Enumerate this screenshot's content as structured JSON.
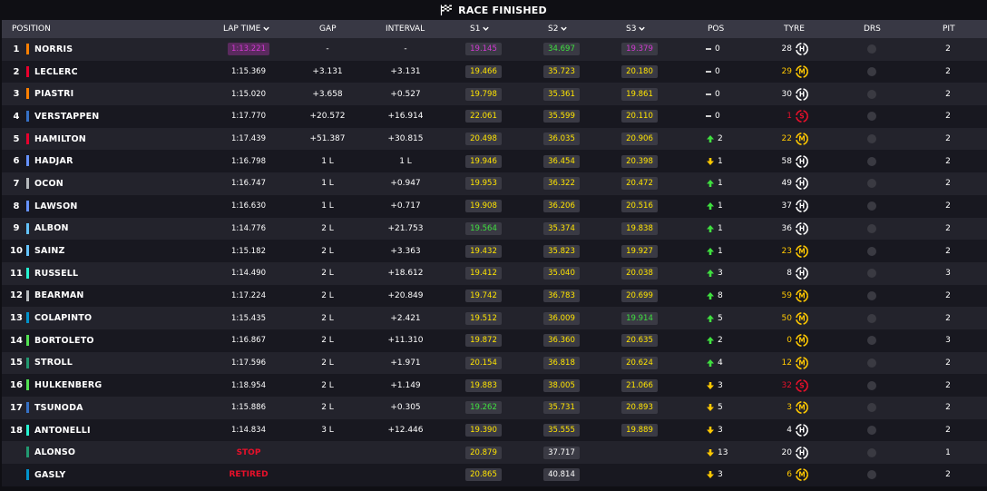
{
  "banner": {
    "title": "RACE FINISHED",
    "icon": "checkered-flag-icon"
  },
  "headers": {
    "position": "POSITION",
    "lap_time": "LAP TIME",
    "gap": "GAP",
    "interval": "INTERVAL",
    "s1": "S1",
    "s2": "S2",
    "s3": "S3",
    "pos": "POS",
    "tyre": "TYRE",
    "drs": "DRS",
    "pit": "PIT"
  },
  "colors": {
    "yellow_sector": "#ffe400",
    "green_sector": "#3fe03f",
    "purple_sector": "#d23ad2",
    "soft": "#e8102a",
    "medium": "#ffc800",
    "hard": "#ffffff"
  },
  "drivers": [
    {
      "pos": "1",
      "name": "NORRIS",
      "team_color": "#ff8000",
      "lap": "1:13.221",
      "lap_best": true,
      "gap": "-",
      "interval": "-",
      "s1": "19.145",
      "s1c": "purple",
      "s2": "34.697",
      "s2c": "green",
      "s3": "19.379",
      "s3c": "purple",
      "chg": "0",
      "dir": "none",
      "tyre_laps": "28",
      "tyre": "H",
      "drs": "",
      "pit": "2"
    },
    {
      "pos": "2",
      "name": "LECLERC",
      "team_color": "#e8002d",
      "lap": "1:15.369",
      "gap": "+3.131",
      "interval": "+3.131",
      "s1": "19.466",
      "s1c": "yellow",
      "s2": "35.723",
      "s2c": "yellow",
      "s3": "20.180",
      "s3c": "yellow",
      "chg": "0",
      "dir": "none",
      "tyre_laps": "29",
      "tyre": "M",
      "drs": "",
      "pit": "2"
    },
    {
      "pos": "3",
      "name": "PIASTRI",
      "team_color": "#ff8000",
      "lap": "1:15.020",
      "gap": "+3.658",
      "interval": "+0.527",
      "s1": "19.798",
      "s1c": "yellow",
      "s2": "35.361",
      "s2c": "yellow",
      "s3": "19.861",
      "s3c": "yellow",
      "chg": "0",
      "dir": "none",
      "tyre_laps": "30",
      "tyre": "H",
      "drs": "",
      "pit": "2"
    },
    {
      "pos": "4",
      "name": "VERSTAPPEN",
      "team_color": "#3671c6",
      "lap": "1:17.770",
      "gap": "+20.572",
      "interval": "+16.914",
      "s1": "22.061",
      "s1c": "yellow",
      "s2": "35.599",
      "s2c": "yellow",
      "s3": "20.110",
      "s3c": "yellow",
      "chg": "0",
      "dir": "none",
      "tyre_laps": "1",
      "tyre": "S",
      "drs": "",
      "pit": "2"
    },
    {
      "pos": "5",
      "name": "HAMILTON",
      "team_color": "#e8002d",
      "lap": "1:17.439",
      "gap": "+51.387",
      "interval": "+30.815",
      "s1": "20.498",
      "s1c": "yellow",
      "s2": "36.035",
      "s2c": "yellow",
      "s3": "20.906",
      "s3c": "yellow",
      "chg": "2",
      "dir": "up",
      "tyre_laps": "22",
      "tyre": "M",
      "drs": "",
      "pit": "2"
    },
    {
      "pos": "6",
      "name": "HADJAR",
      "team_color": "#6692ff",
      "lap": "1:16.798",
      "gap": "1 L",
      "interval": "1 L",
      "s1": "19.946",
      "s1c": "yellow",
      "s2": "36.454",
      "s2c": "yellow",
      "s3": "20.398",
      "s3c": "yellow",
      "chg": "1",
      "dir": "down",
      "tyre_laps": "58",
      "tyre": "H",
      "drs": "",
      "pit": "2"
    },
    {
      "pos": "7",
      "name": "OCON",
      "team_color": "#b6babd",
      "lap": "1:16.747",
      "gap": "1 L",
      "interval": "+0.947",
      "s1": "19.953",
      "s1c": "yellow",
      "s2": "36.322",
      "s2c": "yellow",
      "s3": "20.472",
      "s3c": "yellow",
      "chg": "1",
      "dir": "up",
      "tyre_laps": "49",
      "tyre": "H",
      "drs": "",
      "pit": "2"
    },
    {
      "pos": "8",
      "name": "LAWSON",
      "team_color": "#6692ff",
      "lap": "1:16.630",
      "gap": "1 L",
      "interval": "+0.717",
      "s1": "19.908",
      "s1c": "yellow",
      "s2": "36.206",
      "s2c": "yellow",
      "s3": "20.516",
      "s3c": "yellow",
      "chg": "1",
      "dir": "up",
      "tyre_laps": "37",
      "tyre": "H",
      "drs": "",
      "pit": "2"
    },
    {
      "pos": "9",
      "name": "ALBON",
      "team_color": "#64c4ff",
      "lap": "1:14.776",
      "gap": "2 L",
      "interval": "+21.753",
      "s1": "19.564",
      "s1c": "green",
      "s2": "35.374",
      "s2c": "yellow",
      "s3": "19.838",
      "s3c": "yellow",
      "chg": "1",
      "dir": "up",
      "tyre_laps": "36",
      "tyre": "H",
      "drs": "",
      "pit": "2"
    },
    {
      "pos": "10",
      "name": "SAINZ",
      "team_color": "#64c4ff",
      "lap": "1:15.182",
      "gap": "2 L",
      "interval": "+3.363",
      "s1": "19.432",
      "s1c": "yellow",
      "s2": "35.823",
      "s2c": "yellow",
      "s3": "19.927",
      "s3c": "yellow",
      "chg": "1",
      "dir": "up",
      "tyre_laps": "23",
      "tyre": "M",
      "drs": "",
      "pit": "2"
    },
    {
      "pos": "11",
      "name": "RUSSELL",
      "team_color": "#27f4d2",
      "lap": "1:14.490",
      "gap": "2 L",
      "interval": "+18.612",
      "s1": "19.412",
      "s1c": "yellow",
      "s2": "35.040",
      "s2c": "yellow",
      "s3": "20.038",
      "s3c": "yellow",
      "chg": "3",
      "dir": "up",
      "tyre_laps": "8",
      "tyre": "H",
      "drs": "",
      "pit": "3"
    },
    {
      "pos": "12",
      "name": "BEARMAN",
      "team_color": "#b6babd",
      "lap": "1:17.224",
      "gap": "2 L",
      "interval": "+20.849",
      "s1": "19.742",
      "s1c": "yellow",
      "s2": "36.783",
      "s2c": "yellow",
      "s3": "20.699",
      "s3c": "yellow",
      "chg": "8",
      "dir": "up",
      "tyre_laps": "59",
      "tyre": "M",
      "drs": "",
      "pit": "2"
    },
    {
      "pos": "13",
      "name": "COLAPINTO",
      "team_color": "#0093cc",
      "lap": "1:15.435",
      "gap": "2 L",
      "interval": "+2.421",
      "s1": "19.512",
      "s1c": "yellow",
      "s2": "36.009",
      "s2c": "yellow",
      "s3": "19.914",
      "s3c": "green",
      "chg": "5",
      "dir": "up",
      "tyre_laps": "50",
      "tyre": "M",
      "drs": "",
      "pit": "2"
    },
    {
      "pos": "14",
      "name": "BORTOLETO",
      "team_color": "#52e252",
      "lap": "1:16.867",
      "gap": "2 L",
      "interval": "+11.310",
      "s1": "19.872",
      "s1c": "yellow",
      "s2": "36.360",
      "s2c": "yellow",
      "s3": "20.635",
      "s3c": "yellow",
      "chg": "2",
      "dir": "up",
      "tyre_laps": "0",
      "tyre": "M",
      "drs": "",
      "pit": "3"
    },
    {
      "pos": "15",
      "name": "STROLL",
      "team_color": "#229971",
      "lap": "1:17.596",
      "gap": "2 L",
      "interval": "+1.971",
      "s1": "20.154",
      "s1c": "yellow",
      "s2": "36.818",
      "s2c": "yellow",
      "s3": "20.624",
      "s3c": "yellow",
      "chg": "4",
      "dir": "up",
      "tyre_laps": "12",
      "tyre": "M",
      "drs": "",
      "pit": "2"
    },
    {
      "pos": "16",
      "name": "HULKENBERG",
      "team_color": "#52e252",
      "lap": "1:18.954",
      "gap": "2 L",
      "interval": "+1.149",
      "s1": "19.883",
      "s1c": "yellow",
      "s2": "38.005",
      "s2c": "yellow",
      "s3": "21.066",
      "s3c": "yellow",
      "chg": "3",
      "dir": "down",
      "tyre_laps": "32",
      "tyre": "S",
      "drs": "",
      "pit": "2"
    },
    {
      "pos": "17",
      "name": "TSUNODA",
      "team_color": "#3671c6",
      "lap": "1:15.886",
      "gap": "2 L",
      "interval": "+0.305",
      "s1": "19.262",
      "s1c": "green",
      "s2": "35.731",
      "s2c": "yellow",
      "s3": "20.893",
      "s3c": "yellow",
      "chg": "5",
      "dir": "down",
      "tyre_laps": "3",
      "tyre": "M",
      "drs": "",
      "pit": "2"
    },
    {
      "pos": "18",
      "name": "ANTONELLI",
      "team_color": "#27f4d2",
      "lap": "1:14.834",
      "gap": "3 L",
      "interval": "+12.446",
      "s1": "19.390",
      "s1c": "yellow",
      "s2": "35.555",
      "s2c": "yellow",
      "s3": "19.889",
      "s3c": "yellow",
      "chg": "3",
      "dir": "down",
      "tyre_laps": "4",
      "tyre": "H",
      "drs": "",
      "pit": "2"
    },
    {
      "pos": "",
      "name": "ALONSO",
      "team_color": "#229971",
      "status": "STOP",
      "gap": "",
      "interval": "",
      "s1": "20.879",
      "s1c": "yellow",
      "s2": "37.717",
      "s2c": "white",
      "s3": "",
      "s3c": "none",
      "chg": "13",
      "dir": "down",
      "tyre_laps": "20",
      "tyre": "H",
      "drs": "",
      "pit": "1"
    },
    {
      "pos": "",
      "name": "GASLY",
      "team_color": "#0093cc",
      "status": "RETIRED",
      "gap": "",
      "interval": "",
      "s1": "20.865",
      "s1c": "yellow",
      "s2": "40.814",
      "s2c": "white",
      "s3": "",
      "s3c": "none",
      "chg": "3",
      "dir": "down",
      "tyre_laps": "6",
      "tyre": "M",
      "drs": "",
      "pit": "2"
    }
  ]
}
